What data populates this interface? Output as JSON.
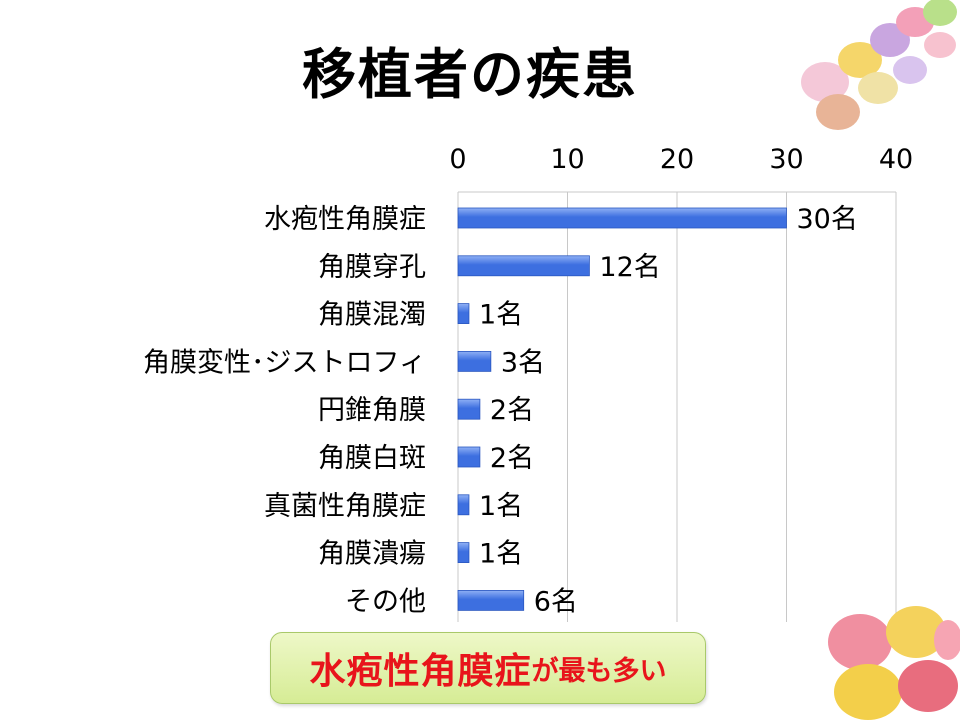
{
  "slide": {
    "title": "移植者の疾患",
    "callout": {
      "emphasis": "水疱性角膜症",
      "rest": "が最も多い"
    }
  },
  "colors": {
    "bar": "#3d6fe0",
    "bar_highlight": "#8fb0f5",
    "grid": "#c8c8c8",
    "callout_text": "#e8141b",
    "callout_fill": "#d6ec95"
  },
  "decorations": [
    "candy-eggs-top-right",
    "candy-eggs-bottom-right"
  ],
  "chart_data": {
    "type": "bar",
    "orientation": "horizontal",
    "categories": [
      "水疱性角膜症",
      "角膜穿孔",
      "角膜混濁",
      "角膜変性･ジストロフィ",
      "円錐角膜",
      "角膜白斑",
      "真菌性角膜症",
      "角膜潰瘍",
      "その他"
    ],
    "values": [
      30,
      12,
      1,
      3,
      2,
      2,
      1,
      1,
      6
    ],
    "data_labels": [
      "30名",
      "12名",
      "1名",
      "3名",
      "2名",
      "2名",
      "1名",
      "1名",
      "6名"
    ],
    "xlim": [
      0,
      40
    ],
    "x_ticks": [
      "0",
      "10",
      "20",
      "30",
      "40"
    ],
    "x_axis_position": "top",
    "grid": true,
    "legend": "none"
  }
}
